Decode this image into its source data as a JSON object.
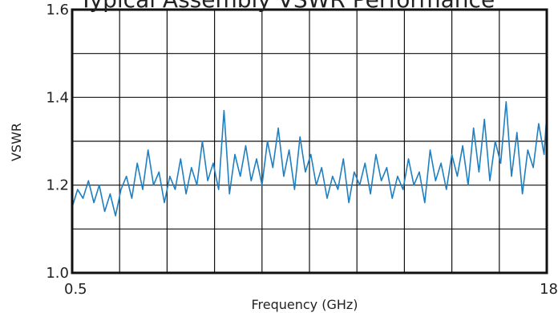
{
  "chart_data": {
    "type": "line",
    "title": "Typical Assembly VSWR Performance",
    "xlabel": "Frequency (GHz)",
    "ylabel": "VSWR",
    "xlim": [
      0.5,
      18
    ],
    "ylim": [
      1.0,
      1.6
    ],
    "x_tick_labels": [
      "0.5",
      "18"
    ],
    "y_tick_labels": [
      "1.0",
      "1.2",
      "1.4",
      "1.6"
    ],
    "grid": true,
    "grid_columns": 10,
    "grid_rows": 6,
    "line_color": "#1f7fc0",
    "series": [
      {
        "x": [
          0.5,
          0.7,
          0.9,
          1.1,
          1.3,
          1.5,
          1.7,
          1.9,
          2.1,
          2.3,
          2.5,
          2.7,
          2.9,
          3.1,
          3.3,
          3.5,
          3.7,
          3.9,
          4.1,
          4.3,
          4.5,
          4.7,
          4.9,
          5.1,
          5.3,
          5.5,
          5.7,
          5.9,
          6.1,
          6.3,
          6.5,
          6.7,
          6.9,
          7.1,
          7.3,
          7.5,
          7.7,
          7.9,
          8.1,
          8.3,
          8.5,
          8.7,
          8.9,
          9.1,
          9.3,
          9.5,
          9.7,
          9.9,
          10.1,
          10.3,
          10.5,
          10.7,
          10.9,
          11.1,
          11.3,
          11.5,
          11.7,
          11.9,
          12.1,
          12.3,
          12.5,
          12.7,
          12.9,
          13.1,
          13.3,
          13.5,
          13.7,
          13.9,
          14.1,
          14.3,
          14.5,
          14.7,
          14.9,
          15.1,
          15.3,
          15.5,
          15.7,
          15.9,
          16.1,
          16.3,
          16.5,
          16.7,
          16.9,
          17.1,
          17.3,
          17.5,
          17.7,
          17.9,
          18.0
        ],
        "y": [
          1.15,
          1.19,
          1.17,
          1.21,
          1.16,
          1.2,
          1.14,
          1.18,
          1.13,
          1.19,
          1.22,
          1.17,
          1.25,
          1.19,
          1.28,
          1.2,
          1.23,
          1.16,
          1.22,
          1.19,
          1.26,
          1.18,
          1.24,
          1.2,
          1.3,
          1.21,
          1.25,
          1.19,
          1.37,
          1.18,
          1.27,
          1.22,
          1.29,
          1.21,
          1.26,
          1.2,
          1.3,
          1.24,
          1.33,
          1.22,
          1.28,
          1.19,
          1.31,
          1.23,
          1.27,
          1.2,
          1.24,
          1.17,
          1.22,
          1.19,
          1.26,
          1.16,
          1.23,
          1.2,
          1.25,
          1.18,
          1.27,
          1.21,
          1.24,
          1.17,
          1.22,
          1.19,
          1.26,
          1.2,
          1.23,
          1.16,
          1.28,
          1.21,
          1.25,
          1.19,
          1.27,
          1.22,
          1.29,
          1.2,
          1.33,
          1.23,
          1.35,
          1.21,
          1.3,
          1.25,
          1.39,
          1.22,
          1.32,
          1.18,
          1.28,
          1.24,
          1.34,
          1.27,
          1.36
        ]
      }
    ]
  }
}
